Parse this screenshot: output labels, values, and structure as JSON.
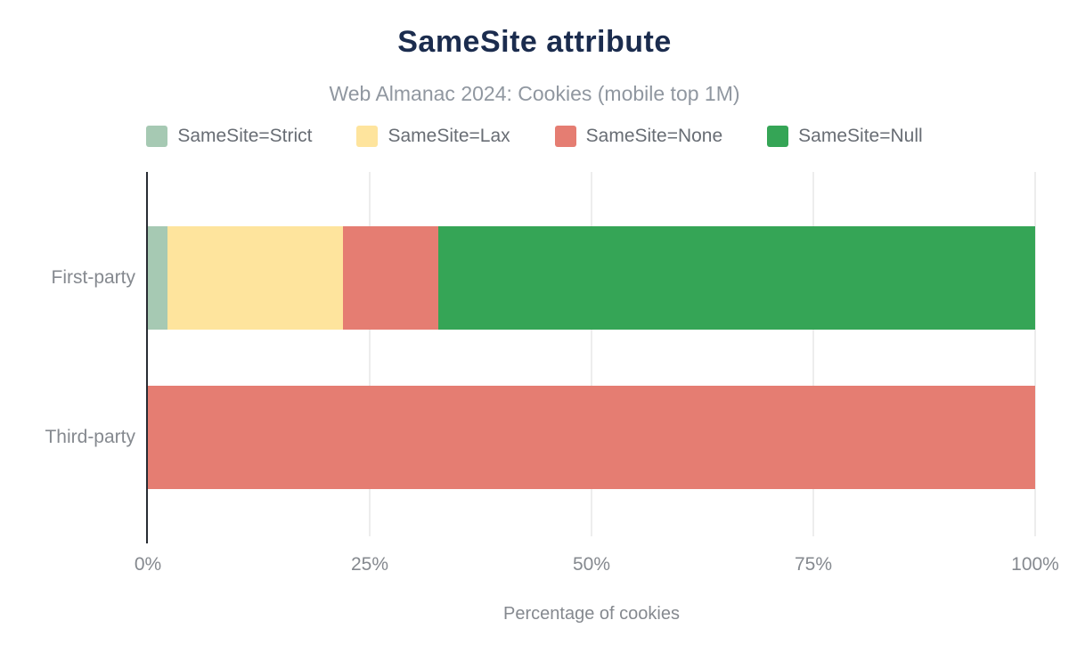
{
  "title": "SameSite attribute",
  "subtitle": "Web Almanac 2024: Cookies (mobile top 1M)",
  "xlabel": "Percentage of cookies",
  "colors": {
    "title": "#1b2c4e",
    "subtitle": "#9097a0",
    "axis_text": "#85898f",
    "axis_line": "#282c33",
    "gridline": "#ededed"
  },
  "chart_data": {
    "type": "bar",
    "orientation": "horizontal",
    "stacked": true,
    "grid": true,
    "legend_position": "top",
    "categories": [
      "First-party",
      "Third-party"
    ],
    "series": [
      {
        "name": "SameSite=Strict",
        "color": "#a6c9b3",
        "values": [
          2.2,
          0
        ]
      },
      {
        "name": "SameSite=Lax",
        "color": "#fee49d",
        "values": [
          19.8,
          0
        ]
      },
      {
        "name": "SameSite=None",
        "color": "#e57d72",
        "values": [
          10.7,
          100
        ]
      },
      {
        "name": "SameSite=Null",
        "color": "#35a556",
        "values": [
          67.3,
          0
        ]
      }
    ],
    "xlim": [
      0,
      100
    ],
    "xticks": [
      {
        "label": "0%",
        "value": 0
      },
      {
        "label": "25%",
        "value": 25
      },
      {
        "label": "50%",
        "value": 50
      },
      {
        "label": "75%",
        "value": 75
      },
      {
        "label": "100%",
        "value": 100
      }
    ],
    "xlabel": "Percentage of cookies",
    "title": "SameSite attribute",
    "subtitle": "Web Almanac 2024: Cookies (mobile top 1M)"
  }
}
